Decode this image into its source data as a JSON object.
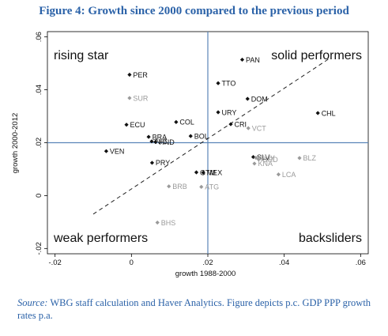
{
  "figure_title": "Figure 4: Growth since 2000 compared to the previous period",
  "source_label": "Source:",
  "source_text": "WBG staff calculation and Haver Analytics. Figure depicts p.c. GDP PPP growth rates p.a.",
  "colors": {
    "title": "#2b62a8",
    "highlight_point": "#111111",
    "muted_point": "#9a9a9a",
    "divider_line": "#5b86b8"
  },
  "chart_data": {
    "type": "scatter",
    "xlabel": "growth 1988-2000",
    "ylabel": "growth 2000-2012",
    "xlim": [
      -0.022,
      0.062
    ],
    "ylim": [
      -0.022,
      0.062
    ],
    "x_ticks": [
      -0.02,
      0,
      0.02,
      0.04,
      0.06
    ],
    "x_tick_labels": [
      "-.02",
      "0",
      ".02",
      ".04",
      ".06"
    ],
    "y_ticks": [
      -0.02,
      0,
      0.02,
      0.04,
      0.06
    ],
    "y_tick_labels": [
      "-.02",
      "0",
      ".02",
      ".04",
      ".06"
    ],
    "grid": false,
    "reference_lines": {
      "x": 0.02,
      "y": 0.02
    },
    "trend_line": {
      "from": [
        -0.01,
        -0.007
      ],
      "to": [
        0.052,
        0.052
      ],
      "style": "dashed"
    },
    "quadrant_labels": {
      "top_left": "rising star",
      "top_right": "solid performers",
      "bottom_left": "weak performers",
      "bottom_right": "backsliders"
    },
    "points": [
      {
        "label": "PAN",
        "x": 0.029,
        "y": 0.0514,
        "group": "highlight"
      },
      {
        "label": "PER",
        "x": -0.0005,
        "y": 0.0457,
        "group": "highlight"
      },
      {
        "label": "SUR",
        "x": -0.0005,
        "y": 0.0369,
        "group": "muted"
      },
      {
        "label": "TTO",
        "x": 0.0227,
        "y": 0.0425,
        "group": "highlight"
      },
      {
        "label": "DOM",
        "x": 0.0304,
        "y": 0.0366,
        "group": "highlight"
      },
      {
        "label": "CHL",
        "x": 0.0488,
        "y": 0.0312,
        "group": "highlight"
      },
      {
        "label": "URY",
        "x": 0.0227,
        "y": 0.0315,
        "group": "highlight"
      },
      {
        "label": "COL",
        "x": 0.0117,
        "y": 0.0278,
        "group": "highlight"
      },
      {
        "label": "CRI",
        "x": 0.026,
        "y": 0.027,
        "group": "highlight"
      },
      {
        "label": "VCT",
        "x": 0.0306,
        "y": 0.0255,
        "group": "muted"
      },
      {
        "label": "ECU",
        "x": -0.0013,
        "y": 0.0268,
        "group": "highlight"
      },
      {
        "label": "BOL",
        "x": 0.0155,
        "y": 0.0225,
        "group": "highlight"
      },
      {
        "label": "BRA",
        "x": 0.0045,
        "y": 0.0222,
        "group": "highlight"
      },
      {
        "label": "NIC",
        "x": 0.0053,
        "y": 0.0205,
        "group": "highlight"
      },
      {
        "label": "HND",
        "x": 0.0063,
        "y": 0.0203,
        "group": "highlight"
      },
      {
        "label": "VEN",
        "x": -0.0066,
        "y": 0.0168,
        "group": "highlight"
      },
      {
        "label": "SLV",
        "x": 0.0319,
        "y": 0.0146,
        "group": "highlight"
      },
      {
        "label": "GUY",
        "x": 0.0326,
        "y": 0.0143,
        "group": "muted"
      },
      {
        "label": "GRD",
        "x": 0.0333,
        "y": 0.0137,
        "group": "muted"
      },
      {
        "label": "BLZ",
        "x": 0.044,
        "y": 0.0142,
        "group": "muted"
      },
      {
        "label": "KNA",
        "x": 0.0322,
        "y": 0.0121,
        "group": "muted"
      },
      {
        "label": "PRY",
        "x": 0.0054,
        "y": 0.0124,
        "group": "highlight"
      },
      {
        "label": "LCA",
        "x": 0.0385,
        "y": 0.008,
        "group": "muted"
      },
      {
        "label": "GTM",
        "x": 0.017,
        "y": 0.0088,
        "group": "highlight"
      },
      {
        "label": "MEX",
        "x": 0.0188,
        "y": 0.0087,
        "group": "highlight"
      },
      {
        "label": "BRB",
        "x": 0.0098,
        "y": 0.0035,
        "group": "muted"
      },
      {
        "label": "ATG",
        "x": 0.0183,
        "y": 0.0033,
        "group": "muted"
      },
      {
        "label": "BHS",
        "x": 0.0068,
        "y": -0.0102,
        "group": "muted"
      }
    ]
  }
}
